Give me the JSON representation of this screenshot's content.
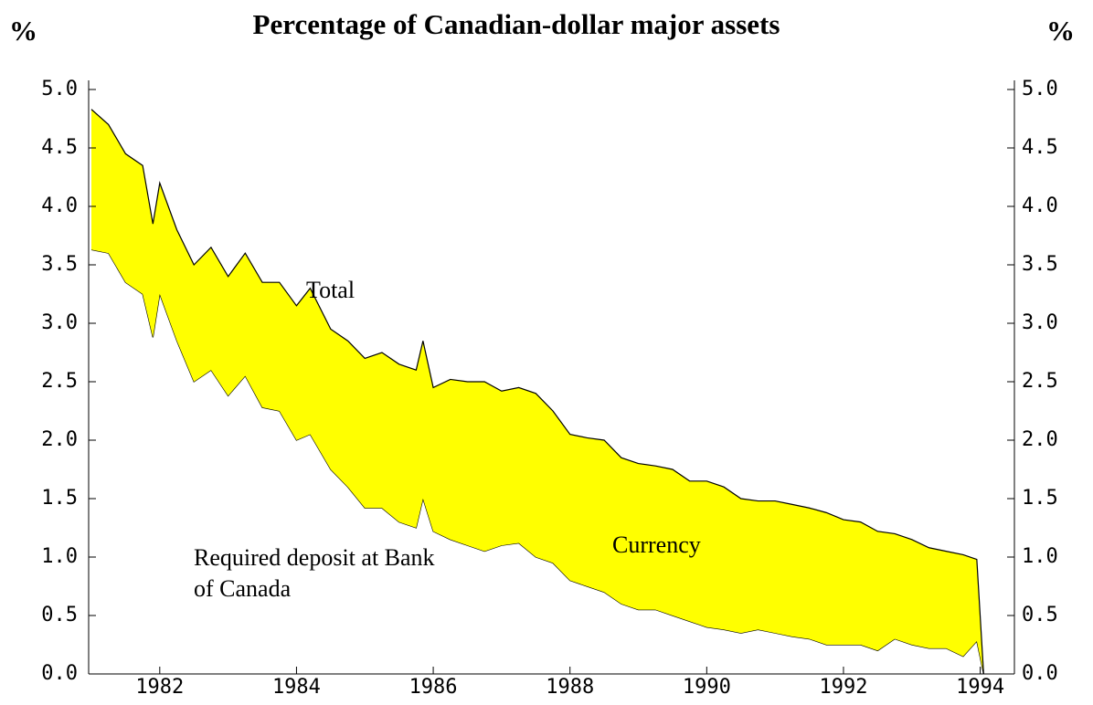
{
  "chart_data": {
    "type": "stacked_area",
    "title": "Percentage of Canadian-dollar major assets",
    "y_label": "%",
    "y2_label": "%",
    "annotations": [
      "Total"
    ],
    "x": [
      1981.0,
      1981.25,
      1981.5,
      1981.75,
      1981.9,
      1982.0,
      1982.25,
      1982.5,
      1982.75,
      1983.0,
      1983.25,
      1983.5,
      1983.75,
      1984.0,
      1984.2,
      1984.5,
      1984.75,
      1985.0,
      1985.25,
      1985.5,
      1985.75,
      1985.85,
      1986.0,
      1986.25,
      1986.5,
      1986.75,
      1987.0,
      1987.25,
      1987.5,
      1987.75,
      1988.0,
      1988.25,
      1988.5,
      1988.75,
      1989.0,
      1989.25,
      1989.5,
      1989.75,
      1990.0,
      1990.25,
      1990.5,
      1990.75,
      1991.0,
      1991.25,
      1991.5,
      1991.75,
      1992.0,
      1992.25,
      1992.5,
      1992.75,
      1993.0,
      1993.25,
      1993.5,
      1993.75,
      1993.95,
      1994.05
    ],
    "series": [
      {
        "name": "Required deposit at Bank of Canada",
        "color": "#ffffff",
        "values": [
          3.63,
          3.6,
          3.35,
          3.25,
          2.88,
          3.25,
          2.85,
          2.5,
          2.6,
          2.38,
          2.55,
          2.28,
          2.25,
          2.0,
          2.05,
          1.75,
          1.6,
          1.42,
          1.42,
          1.3,
          1.25,
          1.5,
          1.22,
          1.15,
          1.1,
          1.05,
          1.1,
          1.12,
          1.0,
          0.95,
          0.8,
          0.75,
          0.7,
          0.6,
          0.55,
          0.55,
          0.5,
          0.45,
          0.4,
          0.38,
          0.35,
          0.38,
          0.35,
          0.32,
          0.3,
          0.25,
          0.25,
          0.25,
          0.2,
          0.3,
          0.25,
          0.22,
          0.22,
          0.15,
          0.28,
          0
        ]
      },
      {
        "name": "Currency",
        "color": "#ffff00",
        "values": [
          1.2,
          1.1,
          1.1,
          1.1,
          0.97,
          0.95,
          0.95,
          1.0,
          1.05,
          1.02,
          1.05,
          1.07,
          1.1,
          1.15,
          1.25,
          1.2,
          1.25,
          1.28,
          1.33,
          1.35,
          1.35,
          1.35,
          1.23,
          1.37,
          1.4,
          1.45,
          1.32,
          1.33,
          1.4,
          1.3,
          1.25,
          1.27,
          1.3,
          1.25,
          1.25,
          1.23,
          1.25,
          1.2,
          1.25,
          1.22,
          1.15,
          1.1,
          1.13,
          1.13,
          1.12,
          1.13,
          1.07,
          1.05,
          1.02,
          0.9,
          0.9,
          0.86,
          0.83,
          0.87,
          0.7,
          0
        ]
      }
    ],
    "xlim": [
      1980.96,
      1994.5
    ],
    "xticks": [
      1982,
      1984,
      1986,
      1988,
      1990,
      1992,
      1994
    ],
    "ylim": [
      0,
      5
    ],
    "yticks": [
      {
        "value": 0,
        "label": "0.0"
      },
      {
        "value": 0.5,
        "label": "0.5"
      },
      {
        "value": 1,
        "label": "1.0"
      },
      {
        "value": 1.5,
        "label": "1.5"
      },
      {
        "value": 2,
        "label": "2.0"
      },
      {
        "value": 2.5,
        "label": "2.5"
      },
      {
        "value": 3,
        "label": "3.0"
      },
      {
        "value": 3.5,
        "label": "3.5"
      },
      {
        "value": 4,
        "label": "4.0"
      },
      {
        "value": 4.5,
        "label": "4.5"
      },
      {
        "value": 5,
        "label": "5.0"
      }
    ],
    "y2lim": [
      0,
      5
    ],
    "y2ticks": [
      {
        "value": 0,
        "label": "0.0"
      },
      {
        "value": 0.5,
        "label": "0.5"
      },
      {
        "value": 1,
        "label": "1.0"
      },
      {
        "value": 1.5,
        "label": "1.5"
      },
      {
        "value": 2,
        "label": "2.0"
      },
      {
        "value": 2.5,
        "label": "2.5"
      },
      {
        "value": 3,
        "label": "3.0"
      },
      {
        "value": 3.5,
        "label": "3.5"
      },
      {
        "value": 4,
        "label": "4.0"
      },
      {
        "value": 4.5,
        "label": "4.5"
      },
      {
        "value": 5,
        "label": "5.0"
      }
    ],
    "grid": false
  }
}
